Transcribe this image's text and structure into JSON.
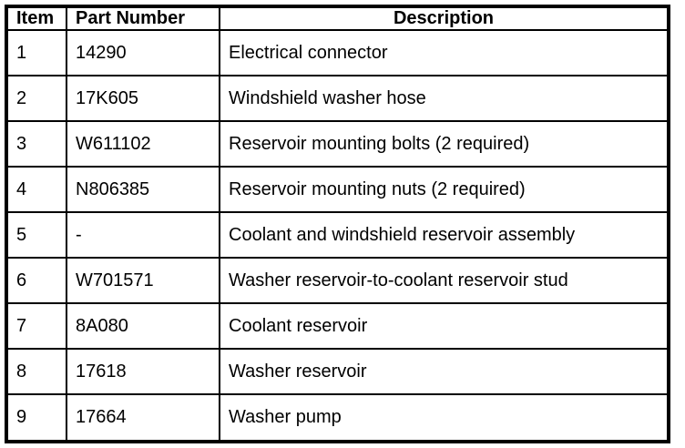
{
  "table": {
    "headers": [
      "Item",
      "Part Number",
      "Description"
    ],
    "rows": [
      [
        "1",
        "14290",
        "Electrical connector"
      ],
      [
        "2",
        "17K605",
        "Windshield washer hose"
      ],
      [
        "3",
        "W611102",
        "Reservoir mounting bolts (2 required)"
      ],
      [
        "4",
        "N806385",
        "Reservoir mounting nuts (2 required)"
      ],
      [
        "5",
        "-",
        "Coolant and windshield reservoir assembly"
      ],
      [
        "6",
        "W701571",
        "Washer reservoir-to-coolant reservoir stud"
      ],
      [
        "7",
        "8A080",
        "Coolant reservoir"
      ],
      [
        "8",
        "17618",
        "Washer reservoir"
      ],
      [
        "9",
        "17664",
        "Washer pump"
      ]
    ]
  }
}
